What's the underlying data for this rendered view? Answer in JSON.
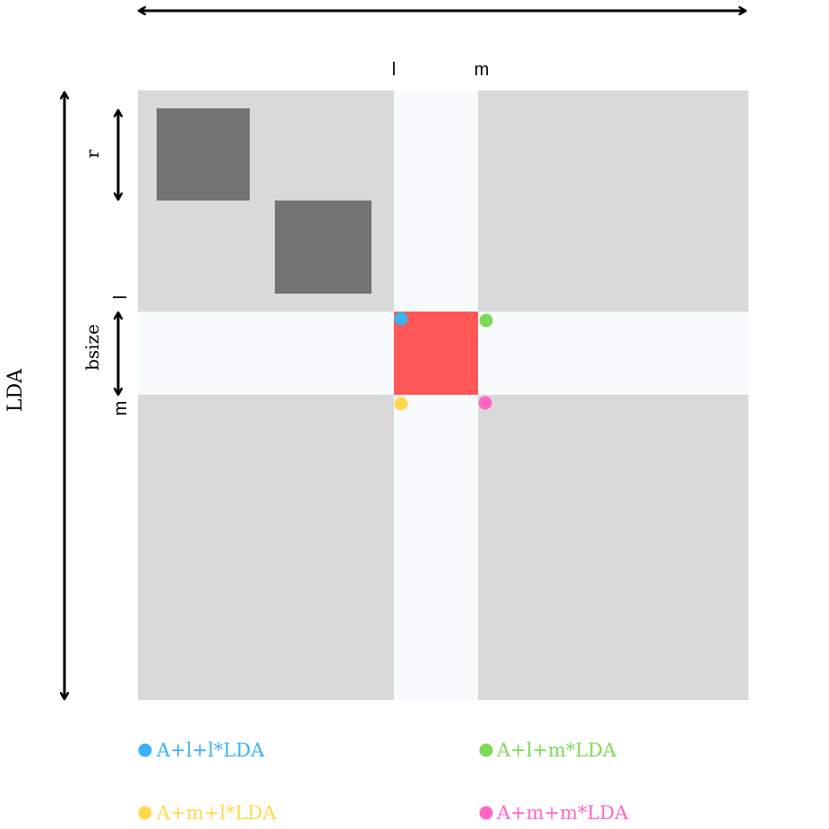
{
  "labels": {
    "col_l": "l",
    "col_m": "m",
    "row_l": "l",
    "row_m": "m",
    "r": "r",
    "bsize": "bsize",
    "lda": "LDA"
  },
  "legend": [
    {
      "text": "A+l+l*LDA",
      "color": "#3bb2f2"
    },
    {
      "text": "A+l+m*LDA",
      "color": "#7ed957"
    },
    {
      "text": "A+m+l*LDA",
      "color": "#ffd84d"
    },
    {
      "text": "A+m+m*LDA",
      "color": "#ff66c4"
    }
  ],
  "colors": {
    "matrix": "#d9d9d9",
    "band": "#f8fbfc",
    "block": "#737373",
    "highlight": "#ff5757",
    "arrow": "#000000"
  }
}
